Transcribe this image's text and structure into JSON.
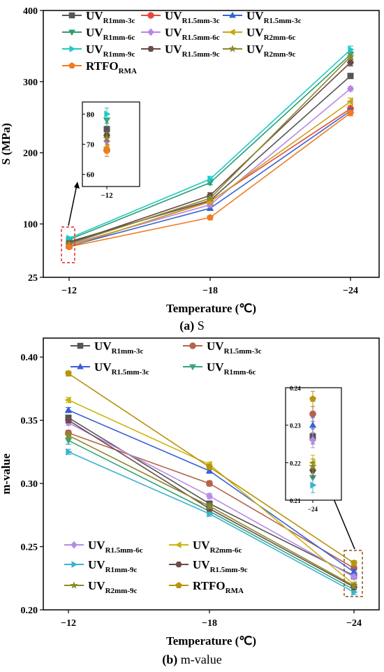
{
  "chart_data": [
    {
      "type": "line",
      "caption_id": "(a)",
      "caption_text": "S",
      "xlabel": "Temperature (℃)",
      "ylabel": "S (MPa)",
      "x": [
        "−12",
        "−18",
        "−24"
      ],
      "yticks": [
        25,
        100,
        200,
        300,
        400
      ],
      "ylim": [
        25,
        400
      ],
      "legend_location": "top",
      "series": [
        {
          "name_main": "UV",
          "name_sub": "R1mm-3c",
          "marker": "square",
          "color": "#555555",
          "values": [
            75,
            133,
            308
          ],
          "errors": [
            2,
            3,
            3
          ]
        },
        {
          "name_main": "UV",
          "name_sub": "R1.5mm-3c",
          "marker": "circle",
          "color": "#e8473c",
          "values": [
            68,
            132,
            262
          ],
          "errors": [
            2,
            3,
            3
          ]
        },
        {
          "name_main": "UV",
          "name_sub": "R1.5mm-3c",
          "marker": "triangle-up",
          "color": "#3366cc",
          "values": [
            69,
            122,
            259
          ],
          "errors": [
            2,
            3,
            3
          ]
        },
        {
          "name_main": "UV",
          "name_sub": "R1mm-6c",
          "marker": "triangle-down",
          "color": "#2e9c6e",
          "values": [
            78,
            158,
            338
          ],
          "errors": [
            2,
            3,
            4
          ]
        },
        {
          "name_main": "UV",
          "name_sub": "R1.5mm-6c",
          "marker": "diamond",
          "color": "#b784e8",
          "values": [
            71,
            127,
            290
          ],
          "errors": [
            2,
            3,
            3
          ]
        },
        {
          "name_main": "UV",
          "name_sub": "R2mm-6c",
          "marker": "triangle-left",
          "color": "#c9a516",
          "values": [
            69,
            131,
            272
          ],
          "errors": [
            2,
            3,
            5
          ]
        },
        {
          "name_main": "UV",
          "name_sub": "R1mm-9c",
          "marker": "triangle-right",
          "color": "#1fc9c6",
          "values": [
            80,
            163,
            345
          ],
          "errors": [
            2,
            4,
            5
          ]
        },
        {
          "name_main": "UV",
          "name_sub": "R1.5mm-9c",
          "marker": "hexagon",
          "color": "#6a4a4a",
          "values": [
            73,
            140,
            327
          ],
          "errors": [
            2,
            4,
            5
          ]
        },
        {
          "name_main": "UV",
          "name_sub": "R2mm-9c",
          "marker": "star",
          "color": "#8a8a2a",
          "values": [
            72,
            136,
            335
          ],
          "errors": [
            2,
            3,
            4
          ]
        },
        {
          "name_main": "RTFO",
          "name_sub": "RMA",
          "marker": "pentagon",
          "color": "#f07c22",
          "values": [
            68,
            109,
            256
          ],
          "errors": [
            2,
            3,
            4
          ]
        }
      ],
      "inset": {
        "x": "−12",
        "yticks": [
          60,
          70,
          80
        ]
      }
    },
    {
      "type": "line",
      "caption_id": "(b)",
      "caption_text": "m-value",
      "xlabel": "Temperature (℃)",
      "ylabel": "m-value",
      "x": [
        "−12",
        "−18",
        "−24"
      ],
      "yticks": [
        "0.20",
        "0.25",
        "0.30",
        "0.35",
        "0.40"
      ],
      "ylim": [
        0.2,
        0.415
      ],
      "legend_location": "top and bottom",
      "series": [
        {
          "name_main": "UV",
          "name_sub": "R1mm-3c",
          "marker": "square",
          "color": "#555555",
          "values": [
            0.352,
            0.284,
            0.227
          ],
          "errors": [
            0.002,
            0.002,
            0.002
          ]
        },
        {
          "name_main": "UV",
          "name_sub": "R1.5mm-3c",
          "marker": "circle",
          "color": "#b5634b",
          "values": [
            0.34,
            0.3,
            0.233
          ],
          "errors": [
            0.002,
            0.002,
            0.002
          ]
        },
        {
          "name_main": "UV",
          "name_sub": "R1.5mm-3c",
          "marker": "triangle-up",
          "color": "#3b5fd9",
          "values": [
            0.358,
            0.31,
            0.23
          ],
          "errors": [
            0.002,
            0.002,
            0.002
          ]
        },
        {
          "name_main": "UV",
          "name_sub": "R1mm-6c",
          "marker": "triangle-down",
          "color": "#3ba37a",
          "values": [
            0.334,
            0.278,
            0.216
          ],
          "errors": [
            0.003,
            0.002,
            0.002
          ]
        },
        {
          "name_main": "UV",
          "name_sub": "R1.5mm-6c",
          "marker": "diamond",
          "color": "#b58be8",
          "values": [
            0.348,
            0.29,
            0.226
          ],
          "errors": [
            0.002,
            0.002,
            0.002
          ]
        },
        {
          "name_main": "UV",
          "name_sub": "R2mm-6c",
          "marker": "triangle-left",
          "color": "#c9b512",
          "values": [
            0.366,
            0.315,
            0.22
          ],
          "errors": [
            0.002,
            0.002,
            0.002
          ]
        },
        {
          "name_main": "UV",
          "name_sub": "R1mm-9c",
          "marker": "triangle-right",
          "color": "#3ab2cf",
          "values": [
            0.325,
            0.276,
            0.214
          ],
          "errors": [
            0.002,
            0.002,
            0.002
          ]
        },
        {
          "name_main": "UV",
          "name_sub": "R1.5mm-9c",
          "marker": "hexagon",
          "color": "#6a4a4a",
          "values": [
            0.35,
            0.28,
            0.218
          ],
          "errors": [
            0.002,
            0.002,
            0.002
          ]
        },
        {
          "name_main": "UV",
          "name_sub": "R2mm-9c",
          "marker": "star",
          "color": "#8a8a2a",
          "values": [
            0.338,
            0.282,
            0.219
          ],
          "errors": [
            0.002,
            0.002,
            0.002
          ]
        },
        {
          "name_main": "RTFO",
          "name_sub": "RMA",
          "marker": "pentagon",
          "color": "#b8940f",
          "values": [
            0.387,
            0.313,
            0.237
          ],
          "errors": [
            0.002,
            0.002,
            0.002
          ]
        }
      ],
      "inset": {
        "x": "−24",
        "yticks": [
          "0.21",
          "0.22",
          "0.23",
          "0.24"
        ]
      }
    }
  ]
}
